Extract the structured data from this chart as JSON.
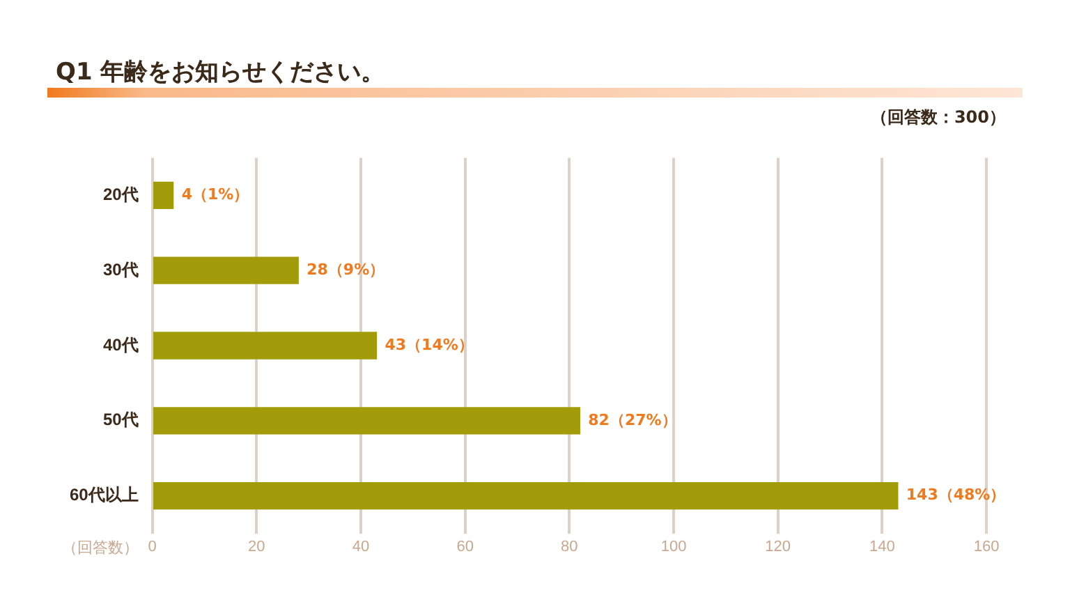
{
  "chart_data": {
    "type": "bar",
    "orientation": "horizontal",
    "title": "Q1 年齢をお知らせください。",
    "subtitle": "（回答数：300）",
    "xlabel": "（回答数）",
    "categories": [
      "20代",
      "30代",
      "40代",
      "50代",
      "60代以上"
    ],
    "values": [
      4,
      28,
      43,
      82,
      143
    ],
    "color": "#a39c0a",
    "value_labels": [
      "4（1%）",
      "28（9%）",
      "43（14%）",
      "82（27%）",
      "143（48%）"
    ],
    "xlim": [
      0,
      160
    ],
    "xticks": [
      0,
      20,
      40,
      60,
      80,
      100,
      120,
      140,
      160
    ],
    "grid": "x",
    "legend": false
  }
}
